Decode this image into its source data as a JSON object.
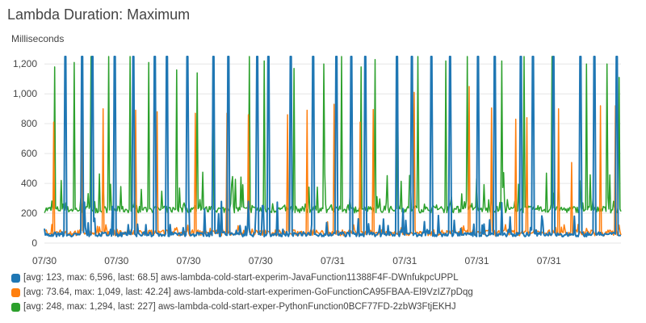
{
  "chart_data": {
    "type": "line",
    "title": "Lambda Duration: Maximum",
    "ylabel": "Milliseconds",
    "xlabel": "",
    "ylim": [
      0,
      1250
    ],
    "yticks": [
      0,
      200,
      400,
      600,
      800,
      1000,
      1200
    ],
    "ytick_labels": [
      "0",
      "200",
      "400",
      "600",
      "800",
      "1,000",
      "1,200"
    ],
    "xtick_labels": [
      "07/30",
      "07/30",
      "07/30",
      "07/30",
      "07/31",
      "07/31",
      "07/31",
      "07/31"
    ],
    "legend_position": "bottom",
    "series": [
      {
        "label": "[avg: 123, max: 6,596, last: 68.5] aws-lambda-cold-start-experim-JavaFunction11388F4F-DWnfukpcUPPL",
        "color": "#1f77b4",
        "avg": 123,
        "max": 6596,
        "last": 68.5,
        "baseline": 55,
        "spike_fractions": [
          0.035,
          0.065,
          0.082,
          0.121,
          0.154,
          0.191,
          0.212,
          0.247,
          0.292,
          0.318,
          0.369,
          0.387,
          0.427,
          0.466,
          0.506,
          0.532,
          0.556,
          0.611,
          0.636,
          0.671,
          0.703,
          0.752,
          0.781,
          0.826,
          0.847,
          0.882,
          0.929,
          0.953,
          0.992
        ]
      },
      {
        "label": "[avg: 73.64, max: 1,049, last: 42.24] aws-lambda-cold-start-experimen-GoFunctionCA95FBAA-El9VzIZ7pDqg",
        "color": "#ff7f0e",
        "avg": 73.64,
        "max": 1049,
        "last": 42.24,
        "baseline": 65,
        "spike_peaks": [
          [
            0.016,
            810
          ],
          [
            0.064,
            920
          ],
          [
            0.102,
            900
          ],
          [
            0.158,
            890
          ],
          [
            0.196,
            880
          ],
          [
            0.262,
            870
          ],
          [
            0.316,
            870
          ],
          [
            0.353,
            860
          ],
          [
            0.422,
            860
          ],
          [
            0.456,
            890
          ],
          [
            0.503,
            930
          ],
          [
            0.548,
            810
          ],
          [
            0.57,
            895
          ],
          [
            0.641,
            1010
          ],
          [
            0.737,
            1049
          ],
          [
            0.775,
            905
          ],
          [
            0.818,
            830
          ],
          [
            0.837,
            840
          ],
          [
            0.891,
            900
          ],
          [
            0.915,
            540
          ],
          [
            0.965,
            920
          ],
          [
            0.99,
            920
          ]
        ]
      },
      {
        "label": "[avg: 248, max: 1,294, last: 227] aws-lambda-cold-start-exper-PythonFunction0BCF77FD-2zbW3FtjEKHJ",
        "color": "#2ca02c",
        "avg": 248,
        "max": 1294,
        "last": 227,
        "baseline": 225,
        "spike_peaks": [
          [
            0.018,
            1180
          ],
          [
            0.051,
            1210
          ],
          [
            0.08,
            1290
          ],
          [
            0.112,
            1250
          ],
          [
            0.149,
            1260
          ],
          [
            0.181,
            1210
          ],
          [
            0.229,
            1160
          ],
          [
            0.265,
            1140
          ],
          [
            0.293,
            1200
          ],
          [
            0.356,
            1290
          ],
          [
            0.381,
            1220
          ],
          [
            0.433,
            1170
          ],
          [
            0.485,
            1200
          ],
          [
            0.516,
            1294
          ],
          [
            0.55,
            1180
          ],
          [
            0.573,
            1230
          ],
          [
            0.613,
            1250
          ],
          [
            0.648,
            1260
          ],
          [
            0.697,
            1220
          ],
          [
            0.734,
            1250
          ],
          [
            0.793,
            1220
          ],
          [
            0.832,
            1290
          ],
          [
            0.88,
            1270
          ],
          [
            0.94,
            1200
          ],
          [
            0.975,
            1200
          ],
          [
            0.997,
            1110
          ]
        ]
      }
    ]
  }
}
